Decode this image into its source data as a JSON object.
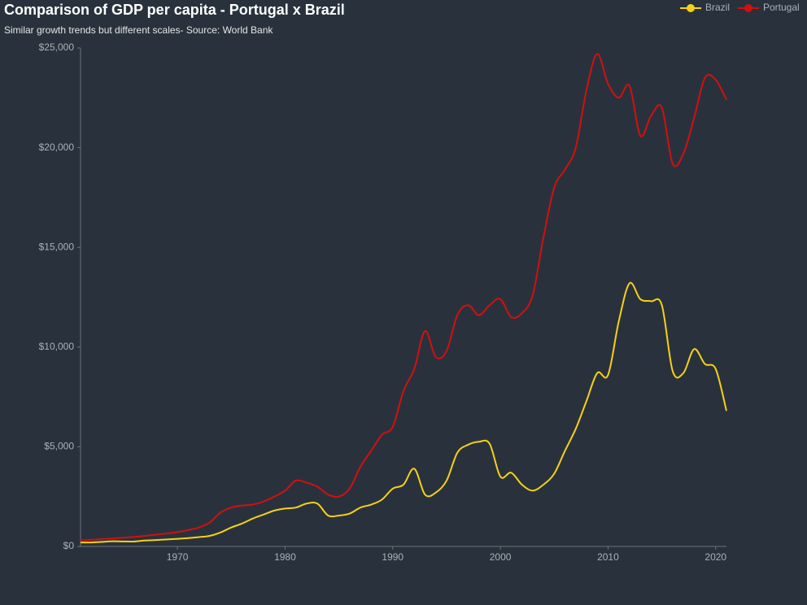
{
  "chart_data": {
    "type": "line",
    "title": "Comparison of GDP per capita - Portugal x Brazil",
    "subtitle": "Similar growth trends but different scales- Source: World Bank",
    "x": [
      1961,
      1962,
      1963,
      1964,
      1965,
      1966,
      1967,
      1968,
      1969,
      1970,
      1971,
      1972,
      1973,
      1974,
      1975,
      1976,
      1977,
      1978,
      1979,
      1980,
      1981,
      1982,
      1983,
      1984,
      1985,
      1986,
      1987,
      1988,
      1989,
      1990,
      1991,
      1992,
      1993,
      1994,
      1995,
      1996,
      1997,
      1998,
      1999,
      2000,
      2001,
      2002,
      2003,
      2004,
      2005,
      2006,
      2007,
      2008,
      2009,
      2010,
      2011,
      2012,
      2013,
      2014,
      2015,
      2016,
      2017,
      2018,
      2019,
      2020,
      2021
    ],
    "series": [
      {
        "name": "Brazil",
        "color": "#f7d117",
        "values": [
          200,
          200,
          230,
          260,
          250,
          250,
          300,
          320,
          350,
          380,
          420,
          470,
          530,
          700,
          950,
          1150,
          1400,
          1600,
          1800,
          1900,
          1950,
          2150,
          2150,
          1550,
          1550,
          1650,
          1950,
          2100,
          2350,
          2900,
          3100,
          3900,
          2600,
          2700,
          3300,
          4700,
          5100,
          5250,
          5150,
          3500,
          3700,
          3100,
          2800,
          3100,
          3650,
          4800,
          5900,
          7300,
          8700,
          8600,
          11300,
          13200,
          12400,
          12300,
          12100,
          8800,
          8700,
          9900,
          9150,
          8900,
          6800
        ]
      },
      {
        "name": "Portugal",
        "color": "#d40f0f",
        "values": [
          300,
          330,
          370,
          400,
          440,
          480,
          530,
          590,
          650,
          720,
          820,
          950,
          1200,
          1700,
          1950,
          2050,
          2100,
          2250,
          2500,
          2800,
          3300,
          3200,
          3000,
          2600,
          2500,
          2900,
          4000,
          4800,
          5600,
          6000,
          7800,
          8900,
          10800,
          9500,
          9800,
          11600,
          12100,
          11600,
          12100,
          12400,
          11500,
          11700,
          12600,
          15500,
          18000,
          18900,
          20000,
          22900,
          24700,
          23200,
          22500,
          23100,
          20600,
          21600,
          22000,
          19200,
          19700,
          21500,
          23500,
          23400,
          22400
        ]
      }
    ],
    "xlim": [
      1961,
      2021
    ],
    "xticks": [
      1970,
      1980,
      1990,
      2000,
      2010,
      2020
    ],
    "ylim": [
      0,
      25000
    ],
    "yticks": [
      {
        "value": 0,
        "label": "$0"
      },
      {
        "value": 5000,
        "label": "$5,000"
      },
      {
        "value": 10000,
        "label": "$10,000"
      },
      {
        "value": 15000,
        "label": "$15,000"
      },
      {
        "value": 20000,
        "label": "$20,000"
      },
      {
        "value": 25000,
        "label": "$25,000"
      }
    ],
    "legend": "top-right"
  }
}
